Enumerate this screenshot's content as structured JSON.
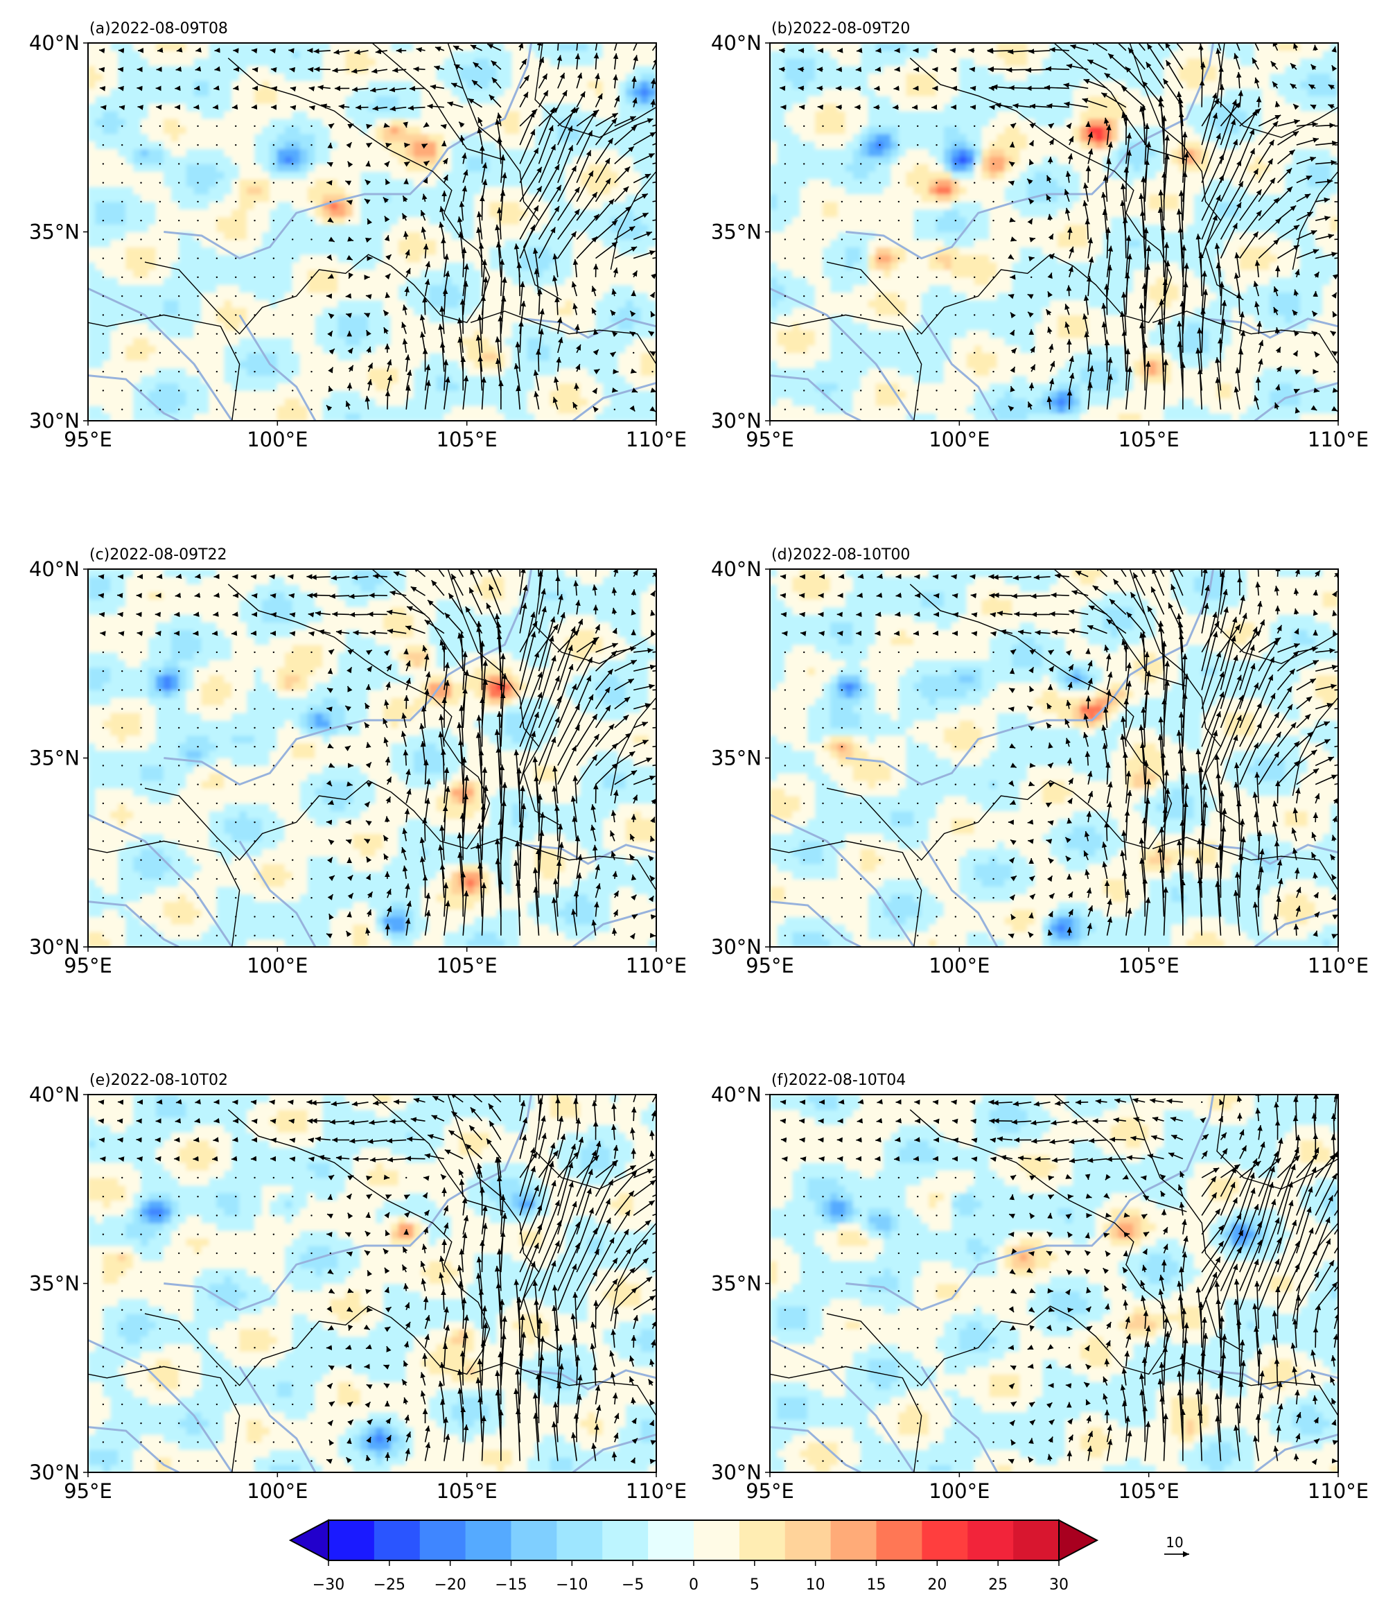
{
  "chart_data": [
    {
      "type": "heatmap",
      "title": "(a)2022-08-09T08",
      "xlim": [
        95,
        110
      ],
      "ylim": [
        30,
        40
      ],
      "hotspots": [
        [
          103,
          37.6,
          12
        ],
        [
          103.8,
          37.1,
          10
        ],
        [
          101.5,
          35.5,
          13
        ],
        [
          99.3,
          36,
          8
        ],
        [
          100.2,
          36.8,
          -12
        ],
        [
          96.5,
          36.9,
          -10
        ],
        [
          109.5,
          38.6,
          -12
        ],
        [
          105.5,
          31.5,
          6
        ]
      ],
      "wind": {
        "jet_lon": 105.8,
        "jet_strength": 7,
        "jet_tilt": 0.35,
        "north_flow": -2.5
      }
    },
    {
      "type": "heatmap",
      "title": "(b)2022-08-09T20",
      "xlim": [
        95,
        110
      ],
      "ylim": [
        30,
        40
      ],
      "hotspots": [
        [
          103.6,
          37.5,
          22
        ],
        [
          99.5,
          36,
          14
        ],
        [
          100.8,
          36.7,
          14
        ],
        [
          100,
          36.8,
          -20
        ],
        [
          97.8,
          37.2,
          -14
        ],
        [
          97.9,
          34.2,
          16
        ],
        [
          105,
          31.3,
          10
        ],
        [
          102.6,
          30.4,
          -18
        ],
        [
          106,
          36.9,
          10
        ],
        [
          99.5,
          34.2,
          8
        ]
      ],
      "wind": {
        "jet_lon": 105.5,
        "jet_strength": 10,
        "jet_tilt": 0.1,
        "north_flow": -4
      }
    },
    {
      "type": "heatmap",
      "title": "(c)2022-08-09T22",
      "xlim": [
        95,
        110
      ],
      "ylim": [
        30,
        40
      ],
      "hotspots": [
        [
          104.2,
          36.7,
          16
        ],
        [
          105.8,
          36.7,
          16
        ],
        [
          103.6,
          37.5,
          12
        ],
        [
          100.2,
          36.9,
          10
        ],
        [
          97,
          36.9,
          -16
        ],
        [
          101,
          35.8,
          -12
        ],
        [
          105,
          31.7,
          14
        ],
        [
          103,
          30.5,
          -16
        ],
        [
          104.8,
          34,
          9
        ],
        [
          97.8,
          35,
          -8
        ]
      ],
      "wind": {
        "jet_lon": 106,
        "jet_strength": 11,
        "jet_tilt": 0.05,
        "north_flow": -3
      }
    },
    {
      "type": "heatmap",
      "title": "(d)2022-08-10T00",
      "xlim": [
        95,
        110
      ],
      "ylim": [
        30,
        40
      ],
      "hotspots": [
        [
          103.4,
          36.1,
          18
        ],
        [
          104,
          36.5,
          12
        ],
        [
          97,
          36.8,
          -16
        ],
        [
          96.8,
          35.2,
          12
        ],
        [
          100.2,
          37,
          -8
        ],
        [
          103,
          37,
          -12
        ],
        [
          105.2,
          32.2,
          8
        ],
        [
          102.6,
          30.4,
          -14
        ],
        [
          104.8,
          34.3,
          8
        ]
      ],
      "wind": {
        "jet_lon": 106.2,
        "jet_strength": 11,
        "jet_tilt": 0.0,
        "north_flow": -3
      }
    },
    {
      "type": "heatmap",
      "title": "(e)2022-08-10T02",
      "xlim": [
        95,
        110
      ],
      "ylim": [
        30,
        40
      ],
      "hotspots": [
        [
          103.3,
          36.3,
          18
        ],
        [
          96.7,
          36.8,
          -16
        ],
        [
          95.8,
          35.6,
          8
        ],
        [
          100.2,
          36.9,
          -8
        ],
        [
          105,
          32.5,
          6
        ],
        [
          104.8,
          33.5,
          10
        ],
        [
          106.5,
          37,
          -10
        ],
        [
          102.6,
          30.8,
          -10
        ]
      ],
      "wind": {
        "jet_lon": 106.5,
        "jet_strength": 10,
        "jet_tilt": 0.15,
        "north_flow": -3
      }
    },
    {
      "type": "heatmap",
      "title": "(f)2022-08-10T04",
      "xlim": [
        95,
        110
      ],
      "ylim": [
        30,
        40
      ],
      "hotspots": [
        [
          104.3,
          36.3,
          10
        ],
        [
          96.7,
          36.8,
          -14
        ],
        [
          97.8,
          36.5,
          -12
        ],
        [
          100,
          37,
          -10
        ],
        [
          101.5,
          35.6,
          8
        ],
        [
          104.7,
          33.8,
          10
        ],
        [
          107.3,
          36.2,
          -10
        ],
        [
          106,
          31,
          6
        ]
      ],
      "wind": {
        "jet_lon": 107,
        "jet_strength": 10,
        "jet_tilt": 0.4,
        "north_flow": -3
      }
    }
  ],
  "axes": {
    "xticks": [
      "95°E",
      "100°E",
      "105°E",
      "110°E"
    ],
    "yticks": [
      "30°N",
      "35°N",
      "40°N"
    ]
  },
  "colorbar": {
    "ticks": [
      "−30",
      "−25",
      "−20",
      "−15",
      "−10",
      "−5",
      "0",
      "5",
      "10",
      "15",
      "20",
      "25",
      "30"
    ],
    "colors": [
      "#2200cc",
      "#1a1aff",
      "#2a55ff",
      "#3f86ff",
      "#55aaff",
      "#7fcfff",
      "#9ee6ff",
      "#bdf5ff",
      "#e6ffff",
      "#fffbe6",
      "#ffedb3",
      "#ffd39a",
      "#ffab78",
      "#ff7755",
      "#ff3e3e",
      "#f2243a",
      "#d8162f",
      "#a8001f"
    ],
    "extend": "both"
  },
  "reference_vector": {
    "label": "10"
  },
  "map_colors": {
    "border": "#000000",
    "river": "#97b2dc"
  }
}
